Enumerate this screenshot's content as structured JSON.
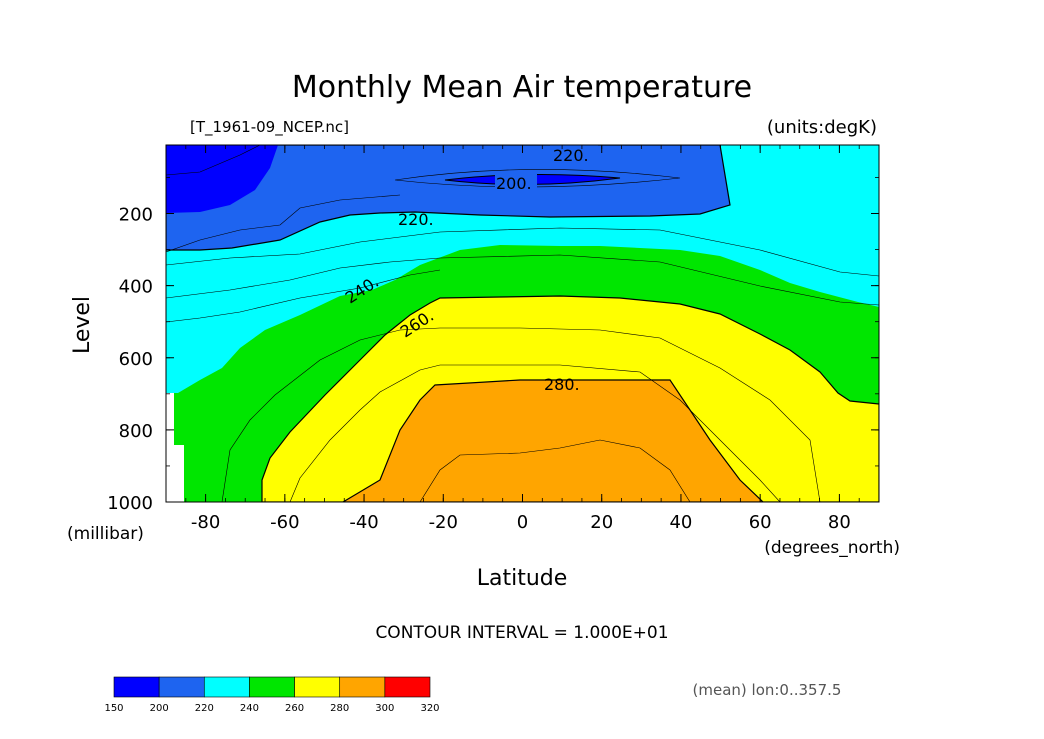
{
  "chart_data": {
    "type": "contour",
    "title": "Monthly Mean Air temperature",
    "source_file": "[T_1961-09_NCEP.nc]",
    "units": "(units:degK)",
    "xlabel": "Latitude",
    "ylabel": "Level",
    "x_units": "(degrees_north)",
    "y_units": "(millibar)",
    "xlim": [
      -90,
      90
    ],
    "ylim": [
      1000,
      10
    ],
    "x_ticks": [
      "-80",
      "-60",
      "-40",
      "-20",
      "0",
      "20",
      "40",
      "60",
      "80"
    ],
    "y_ticks": [
      "200",
      "400",
      "600",
      "800",
      "1000"
    ],
    "contour_interval_text": "CONTOUR INTERVAL = 1.000E+01",
    "averaging_note": "(mean) lon:0..357.5",
    "contour_labels": [
      {
        "text": "220.",
        "lat": 13,
        "level": 30
      },
      {
        "text": "200.",
        "lat": 5,
        "level": 110
      },
      {
        "text": "220.",
        "lat": -26,
        "level": 205
      },
      {
        "text": "240.",
        "lat": -40,
        "level": 405
      },
      {
        "text": "260.",
        "lat": -25,
        "level": 495
      },
      {
        "text": "280.",
        "lat": 10,
        "level": 690
      }
    ],
    "colorbar": {
      "levels": [
        "150",
        "200",
        "220",
        "240",
        "260",
        "280",
        "300",
        "320"
      ],
      "colors": [
        "#0000ff",
        "#1e64f0",
        "#00ffff",
        "#00e600",
        "#ffff00",
        "#ffa500",
        "#ff0000"
      ]
    },
    "grid": false
  }
}
